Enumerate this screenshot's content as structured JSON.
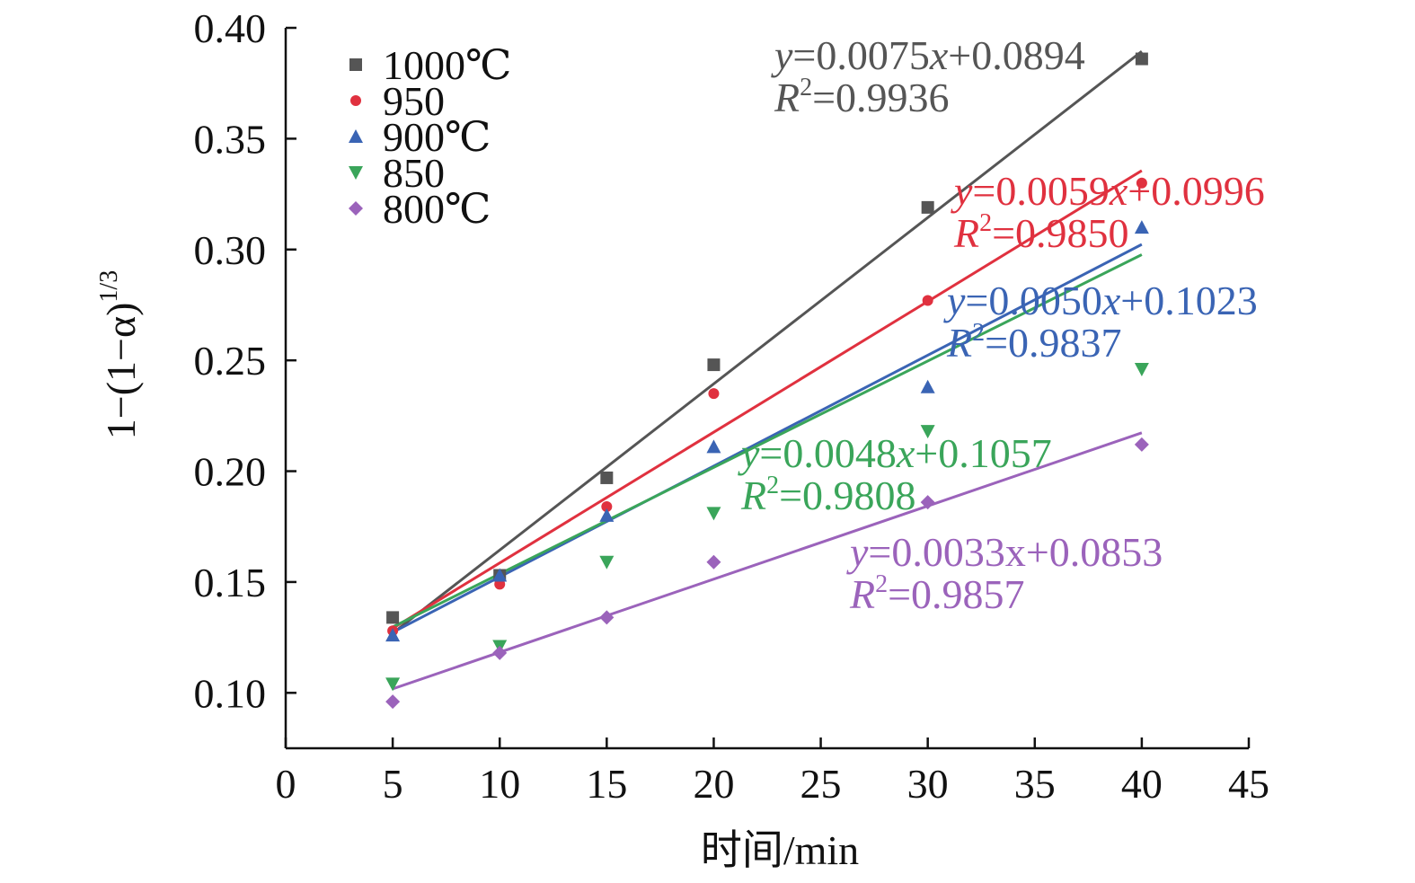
{
  "chart_data": {
    "type": "scatter",
    "xlabel": "时间/min",
    "ylabel": {
      "base": "1−(1−α)",
      "sup": "1/3"
    },
    "xlim": [
      0,
      45
    ],
    "ylim": [
      0.075,
      0.4
    ],
    "xticks": [
      "0",
      "5",
      "10",
      "15",
      "20",
      "25",
      "30",
      "35",
      "40",
      "45"
    ],
    "xtick_values": [
      0,
      5,
      10,
      15,
      20,
      25,
      30,
      35,
      40,
      45
    ],
    "yticks": [
      "0.10",
      "0.15",
      "0.20",
      "0.25",
      "0.30",
      "0.35",
      "0.40"
    ],
    "ytick_values": [
      0.1,
      0.15,
      0.2,
      0.25,
      0.3,
      0.35,
      0.4
    ],
    "grid": false,
    "legend_position": "top-left",
    "series": [
      {
        "name": "1000℃",
        "color": "#555555",
        "marker": "square",
        "x": [
          5,
          10,
          15,
          20,
          30,
          40
        ],
        "y": [
          0.134,
          0.153,
          0.197,
          0.248,
          0.319,
          0.386
        ],
        "fit": {
          "slope": 0.0075,
          "intercept": 0.0894
        },
        "equation": {
          "y": "y",
          "a": "=0.0075",
          "x": "x",
          "b": "+0.0894",
          "r": "R",
          "r2": "=0.9936"
        }
      },
      {
        "name": "950",
        "color": "#e0313f",
        "marker": "circle",
        "x": [
          5,
          10,
          15,
          20,
          30,
          40
        ],
        "y": [
          0.128,
          0.149,
          0.184,
          0.235,
          0.277,
          0.33
        ],
        "fit": {
          "slope": 0.0059,
          "intercept": 0.0996
        },
        "equation": {
          "y": "y",
          "a": "=0.0059",
          "x": "x",
          "b": "+0.0996",
          "r": "R",
          "r2": "=0.9850"
        }
      },
      {
        "name": "900℃",
        "color": "#3a64b4",
        "marker": "triangle-up",
        "x": [
          5,
          10,
          15,
          20,
          30,
          40
        ],
        "y": [
          0.126,
          0.153,
          0.18,
          0.211,
          0.238,
          0.31
        ],
        "fit": {
          "slope": 0.005,
          "intercept": 0.1023
        },
        "equation": {
          "y": "y",
          "a": "=0.0050",
          "x": "x",
          "b": "+0.1023",
          "r": "R",
          "r2": "=0.9837"
        }
      },
      {
        "name": "850",
        "color": "#3aa55a",
        "marker": "triangle-down",
        "x": [
          5,
          10,
          15,
          20,
          30,
          40
        ],
        "y": [
          0.104,
          0.121,
          0.159,
          0.181,
          0.218,
          0.246
        ],
        "fit": {
          "slope": 0.0048,
          "intercept": 0.1057
        },
        "equation": {
          "y": "y",
          "a": "=0.0048",
          "x": "x",
          "b": "+0.1057",
          "r": "R",
          "r2": "=0.9808"
        }
      },
      {
        "name": "800℃",
        "color": "#9b63bb",
        "marker": "diamond",
        "x": [
          5,
          10,
          15,
          20,
          30,
          40
        ],
        "y": [
          0.096,
          0.118,
          0.134,
          0.159,
          0.186,
          0.212
        ],
        "fit": {
          "slope": 0.0033,
          "intercept": 0.0853
        },
        "equation": {
          "y": "y",
          "a": "=0.0033x+0.0853",
          "x": "",
          "b": "",
          "r": "R",
          "r2": "=0.9857"
        }
      }
    ]
  }
}
